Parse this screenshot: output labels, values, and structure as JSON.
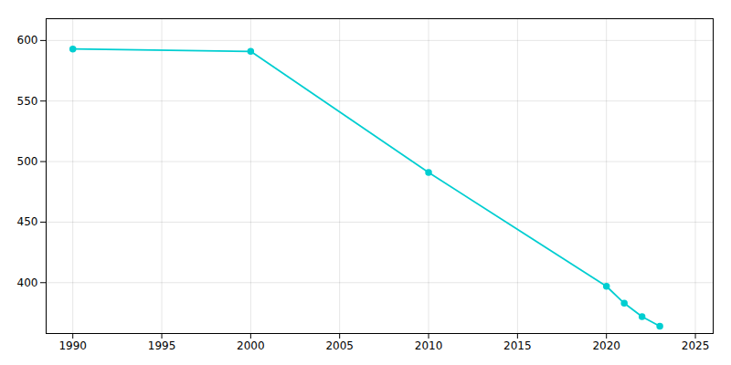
{
  "chart_data": {
    "type": "line",
    "x": [
      1990,
      2000,
      2010,
      2020,
      2021,
      2022,
      2023
    ],
    "values": [
      593,
      591,
      491,
      397,
      383,
      372,
      364
    ],
    "color": "#00CED1",
    "marker": "circle",
    "xlim": [
      1988.5,
      2026
    ],
    "ylim": [
      358,
      618
    ],
    "xticks": [
      1990,
      1995,
      2000,
      2005,
      2010,
      2015,
      2020,
      2025
    ],
    "yticks": [
      400,
      450,
      500,
      550,
      600
    ],
    "grid": true
  }
}
